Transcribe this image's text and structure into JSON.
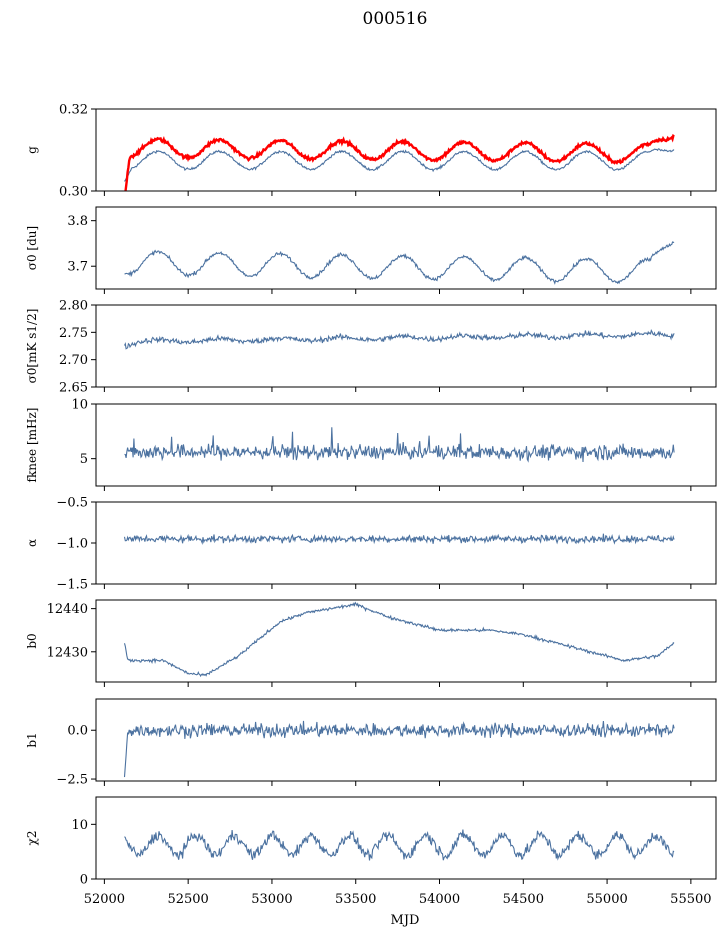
{
  "figure": {
    "title": "000516"
  },
  "colors": {
    "series": "#4c72a0",
    "highlight": "#ff0000",
    "axis": "#000000"
  },
  "chart_data": {
    "type": "line",
    "title": "000516",
    "xlabel": "MJD",
    "xlim": [
      51950,
      55650
    ],
    "xticks": [
      52000,
      52500,
      53000,
      53500,
      54000,
      54500,
      55000,
      55500
    ],
    "x_start": 52120,
    "x_end": 55400,
    "panels": [
      {
        "id": "g",
        "ylabel": "g",
        "ylim": [
          0.3,
          0.32
        ],
        "yticks": [
          0.3,
          0.32
        ],
        "ytick_labels": [
          "0.30",
          "0.32"
        ],
        "series": [
          {
            "name": "g",
            "color": "#4c72a0",
            "profile": "g_blue"
          },
          {
            "name": "g (red)",
            "color": "#ff0000",
            "profile": "g_red"
          }
        ]
      },
      {
        "id": "sigma0_du",
        "ylabel": "σ0 [du]",
        "ylim": [
          3.65,
          3.83
        ],
        "yticks": [
          3.7,
          3.8
        ],
        "ytick_labels": [
          "3.7",
          "3.8"
        ],
        "series": [
          {
            "name": "sigma0",
            "color": "#4c72a0",
            "profile": "sigma_du"
          }
        ]
      },
      {
        "id": "sigma0_mK",
        "ylabel": "σ0[mK s1/2]",
        "ylim": [
          2.65,
          2.8
        ],
        "yticks": [
          2.65,
          2.7,
          2.75,
          2.8
        ],
        "ytick_labels": [
          "2.65",
          "2.70",
          "2.75",
          "2.80"
        ],
        "series": [
          {
            "name": "sigma0_mK",
            "color": "#4c72a0",
            "profile": "sigma_mk"
          }
        ]
      },
      {
        "id": "fknee",
        "ylabel": "fknee [mHz]",
        "ylim": [
          2.5,
          10
        ],
        "yticks": [
          5,
          10
        ],
        "ytick_labels": [
          "5",
          "10"
        ],
        "series": [
          {
            "name": "fknee",
            "color": "#4c72a0",
            "profile": "fknee"
          }
        ]
      },
      {
        "id": "alpha",
        "ylabel": "α",
        "ylim": [
          -1.5,
          -0.5
        ],
        "yticks": [
          -1.5,
          -1.0,
          -0.5
        ],
        "ytick_labels": [
          "−1.5",
          "−1.0",
          "−0.5"
        ],
        "series": [
          {
            "name": "alpha",
            "color": "#4c72a0",
            "profile": "alpha"
          }
        ]
      },
      {
        "id": "b0",
        "ylabel": "b0",
        "ylim": [
          12423,
          12442
        ],
        "yticks": [
          12430,
          12440
        ],
        "ytick_labels": [
          "12430",
          "12440"
        ],
        "series": [
          {
            "name": "b0",
            "color": "#4c72a0",
            "profile": "b0"
          }
        ]
      },
      {
        "id": "b1",
        "ylabel": "b1",
        "ylim": [
          -2.6,
          1.6
        ],
        "yticks": [
          -2.5,
          0.0
        ],
        "ytick_labels": [
          "−2.5",
          "0.0"
        ],
        "series": [
          {
            "name": "b1",
            "color": "#4c72a0",
            "profile": "b1"
          }
        ]
      },
      {
        "id": "chi2",
        "ylabel": "χ2",
        "ylim": [
          0,
          15
        ],
        "yticks": [
          0,
          10
        ],
        "ytick_labels": [
          "0",
          "10"
        ],
        "series": [
          {
            "name": "chi2",
            "color": "#4c72a0",
            "profile": "chi2"
          }
        ]
      }
    ]
  }
}
